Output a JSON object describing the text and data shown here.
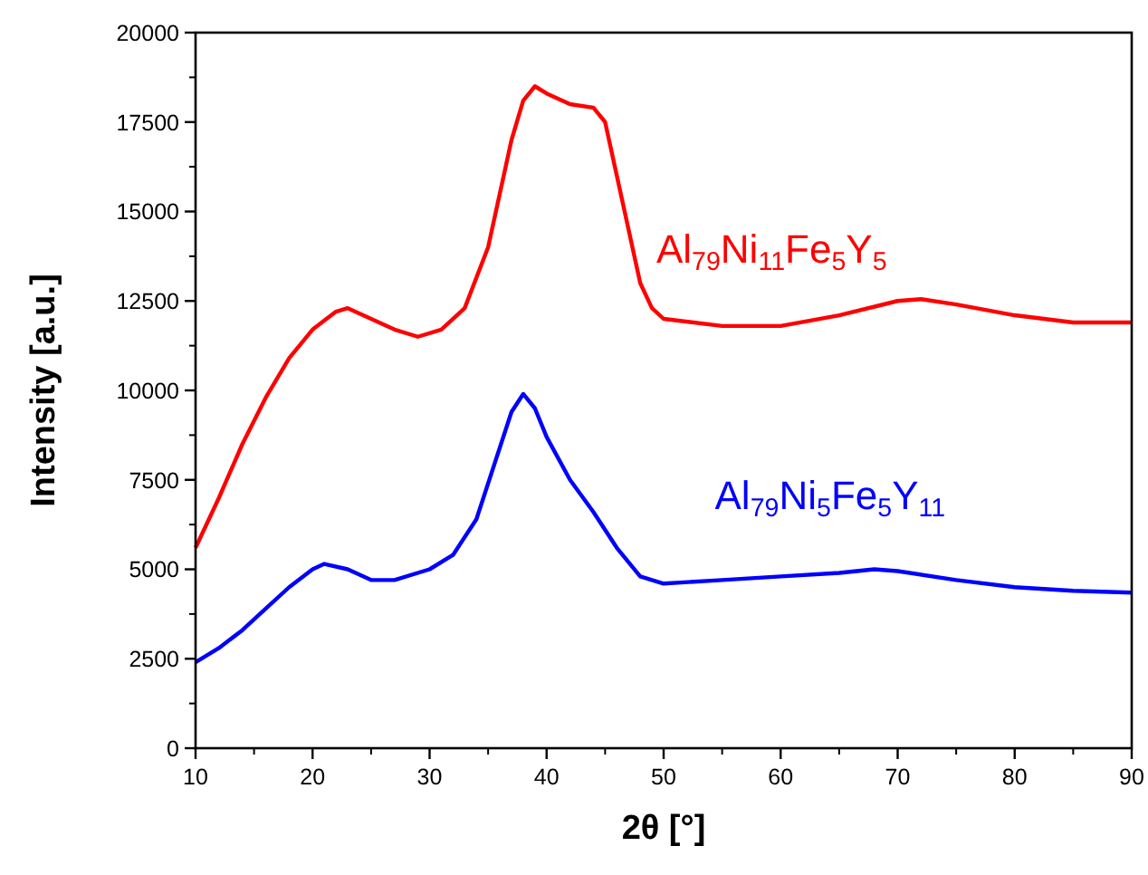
{
  "chart_data": {
    "type": "line",
    "xlabel": "2θ [°]",
    "ylabel": "Intensity [a.u.]",
    "xlim": [
      10,
      90
    ],
    "xticks": [
      10,
      20,
      30,
      40,
      50,
      60,
      70,
      80,
      90
    ],
    "ylim": [
      0,
      20000
    ],
    "yticks": [
      0,
      2500,
      5000,
      7500,
      10000,
      12500,
      15000,
      17500,
      20000
    ],
    "grid": false,
    "marker": "none",
    "line_style": "solid",
    "series": [
      {
        "name": "Al$_{79}$Ni$_{11}$Fe$_{5}$Y$_{5}$",
        "color": "#ff0000",
        "x": [
          10,
          12,
          14,
          16,
          18,
          20,
          22,
          23,
          25,
          27,
          29,
          31,
          33,
          35,
          36,
          37,
          38,
          39,
          40,
          42,
          44,
          45,
          46,
          47,
          48,
          49,
          50,
          55,
          60,
          65,
          70,
          72,
          75,
          80,
          85,
          90
        ],
        "values": [
          5600,
          7000,
          8500,
          9800,
          10900,
          11700,
          12200,
          12300,
          12000,
          11700,
          11500,
          11700,
          12300,
          14000,
          15500,
          17000,
          18100,
          18500,
          18300,
          18000,
          17900,
          17500,
          16000,
          14500,
          13000,
          12300,
          12000,
          11800,
          11800,
          12100,
          12500,
          12550,
          12400,
          12100,
          11900,
          11900
        ]
      },
      {
        "name": "Al$_{79}$Ni$_{5}$Fe$_{5}$Y$_{11}$",
        "color": "#0000ff",
        "x": [
          10,
          12,
          14,
          16,
          18,
          20,
          21,
          23,
          25,
          27,
          30,
          32,
          34,
          36,
          37,
          38,
          39,
          40,
          42,
          44,
          46,
          48,
          50,
          55,
          60,
          65,
          68,
          70,
          75,
          80,
          85,
          90
        ],
        "values": [
          2400,
          2800,
          3300,
          3900,
          4500,
          5000,
          5150,
          5000,
          4700,
          4700,
          5000,
          5400,
          6400,
          8400,
          9400,
          9900,
          9500,
          8700,
          7500,
          6600,
          5600,
          4800,
          4600,
          4700,
          4800,
          4900,
          5000,
          4950,
          4700,
          4500,
          4400,
          4350
        ]
      }
    ]
  }
}
